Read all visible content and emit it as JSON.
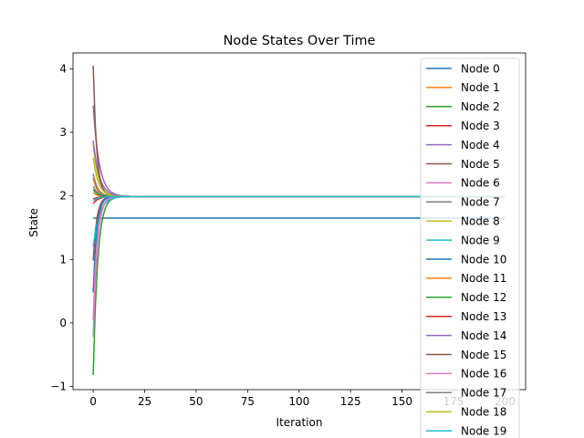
{
  "chart_data": {
    "type": "line",
    "title": "Node States Over Time",
    "xlabel": "Iteration",
    "ylabel": "State",
    "xlim": [
      -9.8,
      210
    ],
    "ylim": [
      -1.05,
      4.25
    ],
    "xticks": [
      0,
      25,
      50,
      75,
      100,
      125,
      150,
      175,
      200
    ],
    "yticks": [
      -1,
      0,
      1,
      2,
      3,
      4
    ],
    "grid": false,
    "legend_position": "right",
    "iterations": 200,
    "consensus_value": 1.99,
    "series": [
      {
        "name": "Node 0",
        "color": "#1f77b4",
        "initial": 1.65,
        "final": 1.65
      },
      {
        "name": "Node 1",
        "color": "#ff7f0e",
        "initial": 2.28,
        "final": 1.99
      },
      {
        "name": "Node 2",
        "color": "#2ca02c",
        "initial": -0.82,
        "final": 1.99
      },
      {
        "name": "Node 3",
        "color": "#d62728",
        "initial": 1.88,
        "final": 1.99
      },
      {
        "name": "Node 4",
        "color": "#9467bd",
        "initial": 3.42,
        "final": 1.99
      },
      {
        "name": "Node 5",
        "color": "#8c564b",
        "initial": 0.98,
        "final": 1.99
      },
      {
        "name": "Node 6",
        "color": "#e377c2",
        "initial": -0.22,
        "final": 1.99
      },
      {
        "name": "Node 7",
        "color": "#7f7f7f",
        "initial": 2.15,
        "final": 1.99
      },
      {
        "name": "Node 8",
        "color": "#bcbd22",
        "initial": 2.82,
        "final": 1.99
      },
      {
        "name": "Node 9",
        "color": "#17becf",
        "initial": 1.2,
        "final": 1.99
      },
      {
        "name": "Node 10",
        "color": "#1f77b4",
        "initial": 0.48,
        "final": 1.99
      },
      {
        "name": "Node 11",
        "color": "#ff7f0e",
        "initial": 2.05,
        "final": 1.99
      },
      {
        "name": "Node 12",
        "color": "#2ca02c",
        "initial": 2.1,
        "final": 1.99
      },
      {
        "name": "Node 13",
        "color": "#d62728",
        "initial": 1.95,
        "final": 1.99
      },
      {
        "name": "Node 14",
        "color": "#9467bd",
        "initial": 2.87,
        "final": 1.99
      },
      {
        "name": "Node 15",
        "color": "#8c564b",
        "initial": 4.05,
        "final": 1.99
      },
      {
        "name": "Node 16",
        "color": "#e377c2",
        "initial": 0.05,
        "final": 1.99
      },
      {
        "name": "Node 17",
        "color": "#7f7f7f",
        "initial": 2.35,
        "final": 1.99
      },
      {
        "name": "Node 18",
        "color": "#bcbd22",
        "initial": 2.6,
        "final": 1.99
      },
      {
        "name": "Node 19",
        "color": "#17becf",
        "initial": 1.93,
        "final": 1.99
      }
    ]
  }
}
